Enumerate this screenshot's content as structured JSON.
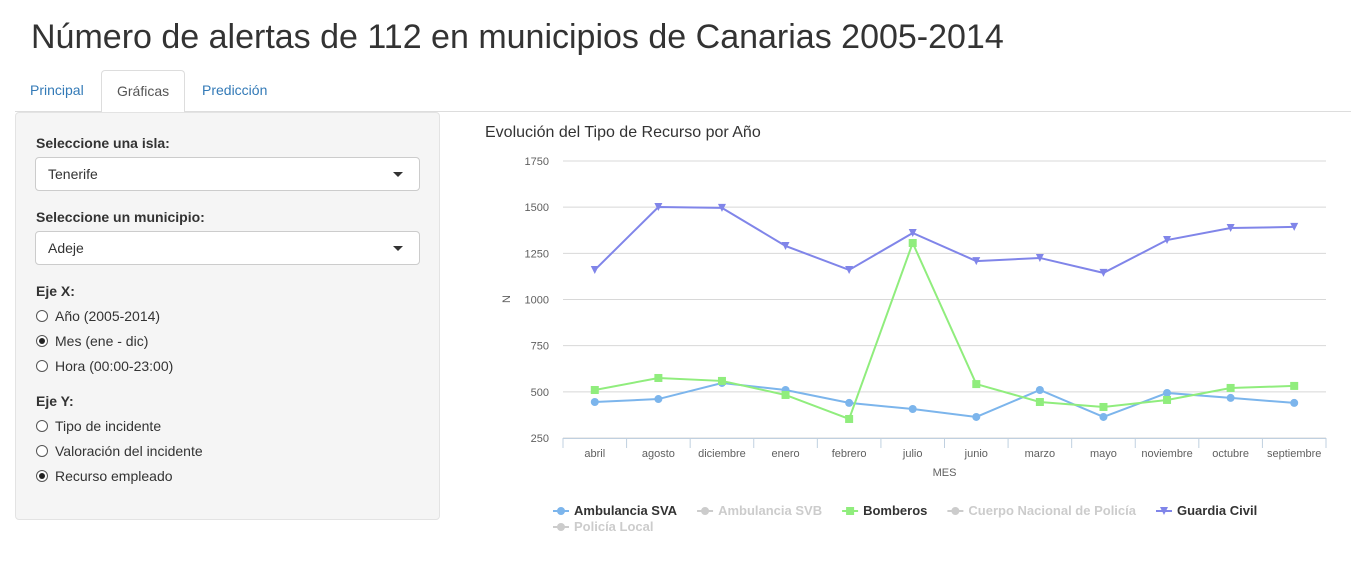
{
  "header": {
    "title": "Número de alertas de 112 en municipios de Canarias 2005-2014"
  },
  "tabs": {
    "items": [
      "Principal",
      "Gráficas",
      "Predicción"
    ],
    "active": 1
  },
  "sidebar": {
    "island": {
      "label": "Seleccione una isla:",
      "value": "Tenerife"
    },
    "municipality": {
      "label": "Seleccione un municipio:",
      "value": "Adeje"
    },
    "x_axis": {
      "label": "Eje X:",
      "options": [
        "Año (2005-2014)",
        "Mes (ene - dic)",
        "Hora (00:00-23:00)"
      ],
      "selected": 1
    },
    "y_axis": {
      "label": "Eje Y:",
      "options": [
        "Tipo de incidente",
        "Valoración del incidente",
        "Recurso empleado"
      ],
      "selected": 2
    }
  },
  "chart_data": {
    "type": "line",
    "title": "Evolución del Tipo de Recurso por Año",
    "xlabel": "MES",
    "ylabel": "N",
    "categories": [
      "abril",
      "agosto",
      "diciembre",
      "enero",
      "febrero",
      "julio",
      "junio",
      "marzo",
      "mayo",
      "noviembre",
      "octubre",
      "septiembre"
    ],
    "ylim": [
      250,
      1750
    ],
    "yticks": [
      250,
      500,
      750,
      1000,
      1250,
      1500,
      1750
    ],
    "grid": true,
    "series": [
      {
        "name": "Ambulancia SVA",
        "color": "#7cb5ec",
        "marker": "circle",
        "visible": true,
        "values": [
          445,
          461,
          548,
          510,
          440,
          407,
          364,
          510,
          364,
          494,
          467,
          440
        ]
      },
      {
        "name": "Ambulancia SVB",
        "visible": false
      },
      {
        "name": "Bomberos",
        "color": "#90ed7d",
        "marker": "square",
        "visible": true,
        "values": [
          510,
          575,
          559,
          483,
          353,
          1306,
          542,
          445,
          418,
          456,
          521,
          532
        ]
      },
      {
        "name": "Cuerpo Nacional de Policía",
        "visible": false
      },
      {
        "name": "Guardia Civil",
        "color": "#8085e9",
        "marker": "triangle-down",
        "visible": true,
        "values": [
          1160,
          1501,
          1496,
          1290,
          1160,
          1360,
          1208,
          1225,
          1144,
          1322,
          1387,
          1393
        ]
      },
      {
        "name": "Policía Local",
        "visible": false
      }
    ]
  }
}
